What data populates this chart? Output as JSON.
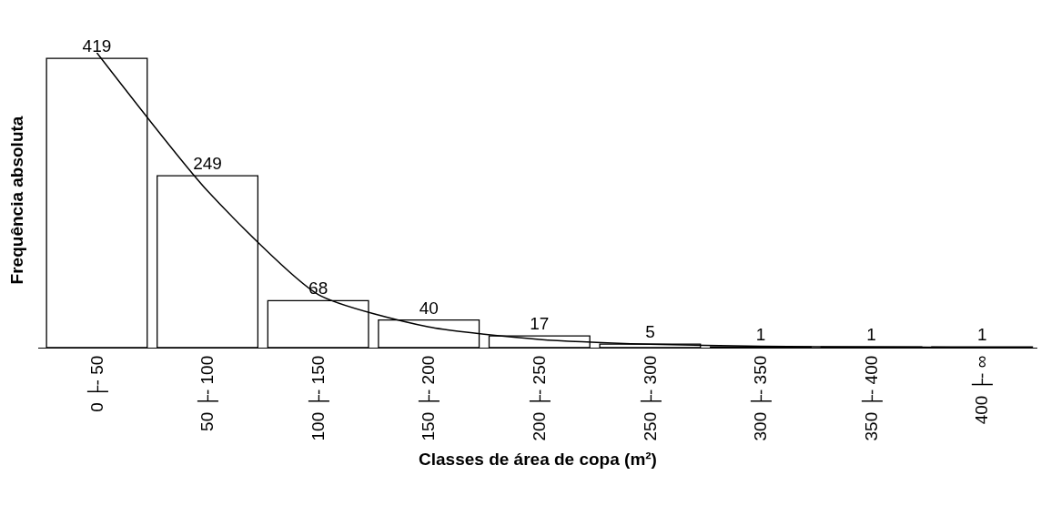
{
  "chart_data": {
    "type": "bar",
    "xlabel": "Classes de área de copa (m²)",
    "ylabel": "Frequência absoluta",
    "categories": [
      "0 ├- 50",
      "50 ├- 100",
      "100 ├- 150",
      "150 ├- 200",
      "200 ├- 250",
      "250 ├- 300",
      "300 ├- 350",
      "350 ├- 400",
      "400 ├- ∞"
    ],
    "series": [
      {
        "color": "#ffffff",
        "values": [
          419,
          249,
          68,
          40,
          17,
          5,
          1,
          1,
          1
        ],
        "value_labels": [
          "419",
          "249",
          "68",
          "40",
          "17",
          "5",
          "1",
          "1",
          "1"
        ]
      },
      {
        "type": "line",
        "color": "#000000",
        "values": [
          427,
          227,
          77,
          30,
          12,
          5,
          2,
          1,
          0
        ]
      }
    ],
    "tick_labels": "x",
    "grid": false,
    "legend": false,
    "marker": "none",
    "line_style": "solid"
  }
}
